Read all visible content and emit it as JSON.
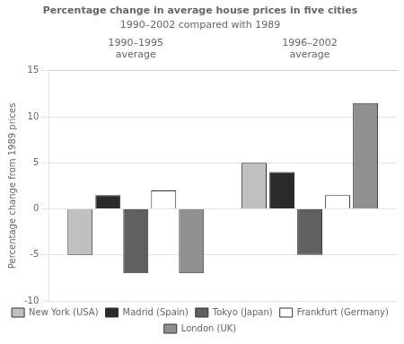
{
  "chart_data": {
    "type": "bar",
    "title": "Percentage change in average house prices in five cities",
    "subtitle": "1990–2002 compared with 1989",
    "categories": [
      "1990–1995\naverage",
      "1996–2002\naverage"
    ],
    "ylabel": "Percentage change from 1989 prices",
    "ylim": [
      -10,
      15
    ],
    "yticks": [
      -10,
      -5,
      0,
      5,
      10,
      15
    ],
    "grid": true,
    "legend": "bottom",
    "series": [
      {
        "name": "New York (USA)",
        "color": "#c0c0c0",
        "values": [
          -5,
          5
        ]
      },
      {
        "name": "Madrid (Spain)",
        "color": "#2a2a2a",
        "values": [
          1.5,
          4
        ]
      },
      {
        "name": "Tokyo (Japan)",
        "color": "#606060",
        "values": [
          -7,
          -5
        ]
      },
      {
        "name": "Frankfurt (Germany)",
        "color": "#ffffff",
        "values": [
          2,
          1.5
        ]
      },
      {
        "name": "London (UK)",
        "color": "#909090",
        "values": [
          -7,
          11.5
        ]
      }
    ]
  }
}
